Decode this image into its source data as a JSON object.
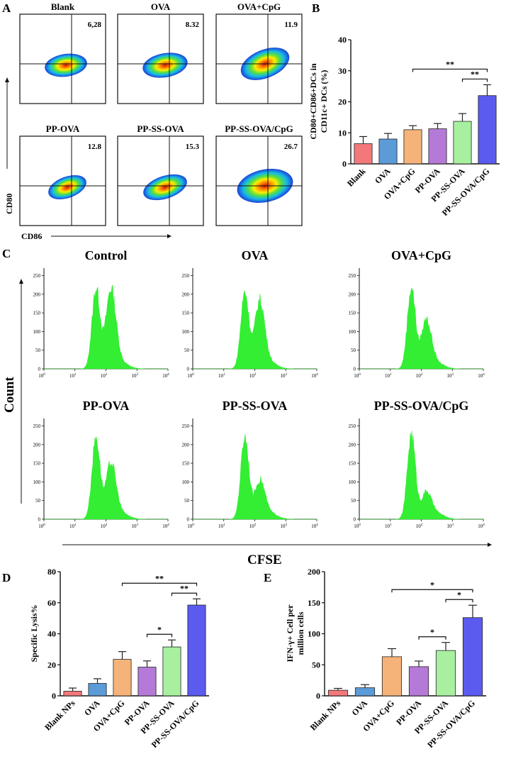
{
  "panel_letters": [
    "A",
    "B",
    "C",
    "D",
    "E"
  ],
  "colors": {
    "bars": [
      "#f2787a",
      "#5b9bd8",
      "#f5b37a",
      "#b57ad8",
      "#a8f0a0",
      "#5b5bf0"
    ],
    "histogram": "#33ee33",
    "axis": "#111111"
  },
  "panelA": {
    "x_axis_label": "CD86",
    "y_axis_label": "CD80",
    "plots": [
      {
        "title": "Blank",
        "value": "6,28"
      },
      {
        "title": "OVA",
        "value": "8.32"
      },
      {
        "title": "OVA+CpG",
        "value": "11.9"
      },
      {
        "title": "PP-OVA",
        "value": "12.8"
      },
      {
        "title": "PP-SS-OVA",
        "value": "15.3"
      },
      {
        "title": "PP-SS-OVA/CpG",
        "value": "26.7"
      }
    ]
  },
  "panelC": {
    "x_axis_label": "CFSE",
    "y_axis_label": "Count",
    "y_ticks": [
      "0",
      "50",
      "100",
      "150",
      "200",
      "250"
    ],
    "x_ticks": [
      "10",
      "10",
      "10",
      "10",
      "10"
    ],
    "x_tick_exponents": [
      "0",
      "1",
      "2",
      "3",
      "4"
    ],
    "histograms": [
      {
        "title": "Control",
        "peak1": 235,
        "peak2": 230
      },
      {
        "title": "OVA",
        "peak1": 225,
        "peak2": 195
      },
      {
        "title": "OVA+CpG",
        "peak1": 240,
        "peak2": 140
      },
      {
        "title": "PP-OVA",
        "peak1": 240,
        "peak2": 160
      },
      {
        "title": "PP-SS-OVA",
        "peak1": 245,
        "peak2": 110
      },
      {
        "title": "PP-SS-OVA/CpG",
        "peak1": 250,
        "peak2": 75
      }
    ]
  },
  "chart_data": [
    {
      "id": "B",
      "type": "bar",
      "title": "",
      "ylabel_lines": [
        "CD80+CD86+DCs in",
        "CD11c+ DCs (%)"
      ],
      "categories": [
        "Blank",
        "OVA",
        "OVA+CpG",
        "PP-OVA",
        "PP-SS-OVA",
        "PP-SS-OVA/CpG"
      ],
      "values": [
        6.5,
        8,
        11,
        11.3,
        13.7,
        22
      ],
      "errors": [
        2.3,
        1.8,
        1.3,
        1.7,
        2.5,
        3.5
      ],
      "ylim": [
        0,
        40
      ],
      "yticks": [
        0,
        10,
        20,
        30,
        40
      ],
      "significance": [
        {
          "from": 2,
          "to": 5,
          "label": "**"
        },
        {
          "from": 4,
          "to": 5,
          "label": "**"
        }
      ]
    },
    {
      "id": "D",
      "type": "bar",
      "title": "",
      "ylabel_lines": [
        "Specific Lysis%"
      ],
      "categories": [
        "Blank NPs",
        "OVA",
        "OVA+CpG",
        "PP-OVA",
        "PP-SS-OVA",
        "PP-SS-OVA/CpG"
      ],
      "values": [
        3,
        8,
        23.5,
        18.5,
        31.5,
        58.5
      ],
      "errors": [
        2,
        3,
        5,
        4,
        4.5,
        4
      ],
      "ylim": [
        0,
        80
      ],
      "yticks": [
        0,
        20,
        40,
        60,
        80
      ],
      "significance": [
        {
          "from": 2,
          "to": 5,
          "label": "**"
        },
        {
          "from": 4,
          "to": 5,
          "label": "**"
        },
        {
          "from": 3,
          "to": 4,
          "label": "*"
        }
      ]
    },
    {
      "id": "E",
      "type": "bar",
      "title": "",
      "ylabel_lines": [
        "IFN-γ+ Cell per",
        "million cells"
      ],
      "categories": [
        "Blank NPs",
        "OVA",
        "OVA+CpG",
        "PP-OVA",
        "PP-SS-OVA",
        "PP-SS-OVA/CpG"
      ],
      "values": [
        9,
        13,
        63,
        47,
        73,
        126
      ],
      "errors": [
        3,
        5,
        13,
        9,
        13,
        20
      ],
      "ylim": [
        0,
        200
      ],
      "yticks": [
        0,
        50,
        100,
        150,
        200
      ],
      "significance": [
        {
          "from": 2,
          "to": 5,
          "label": "*"
        },
        {
          "from": 4,
          "to": 5,
          "label": "*"
        },
        {
          "from": 3,
          "to": 4,
          "label": "*"
        }
      ]
    }
  ]
}
